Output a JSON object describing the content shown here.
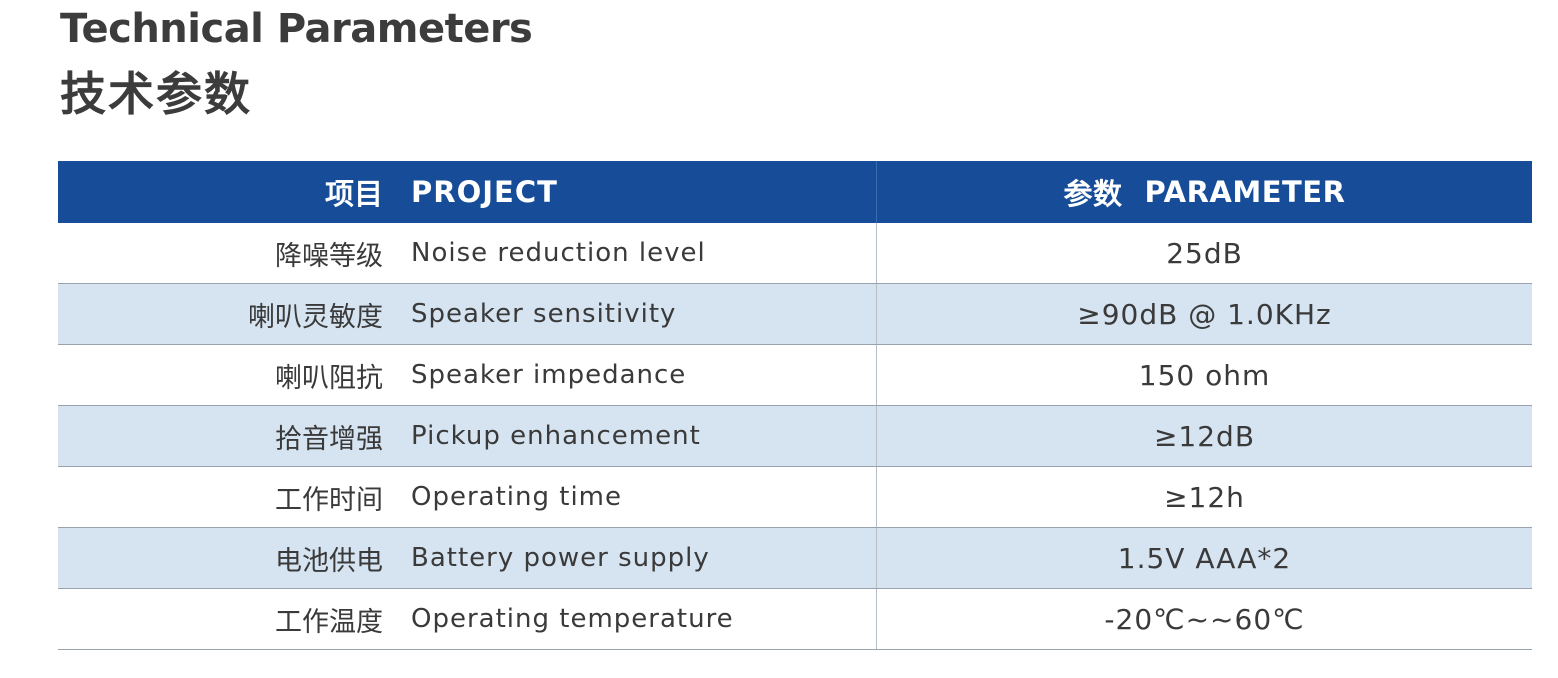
{
  "title_en": "Technical Parameters",
  "title_cn": "技术参数",
  "header": {
    "project_cn": "项目",
    "project_en": "PROJECT",
    "parameter_cn": "参数",
    "parameter_en": "PARAMETER"
  },
  "rows": [
    {
      "cn": "降噪等级",
      "en": "Noise reduction level",
      "value": "25dB"
    },
    {
      "cn": "喇叭灵敏度",
      "en": "Speaker sensitivity",
      "value": "≥90dB @ 1.0KHz"
    },
    {
      "cn": "喇叭阻抗",
      "en": "Speaker impedance",
      "value": "150 ohm"
    },
    {
      "cn": "拾音增强",
      "en": "Pickup enhancement",
      "value": "≥12dB"
    },
    {
      "cn": "工作时间",
      "en": "Operating time",
      "value": "≥12h"
    },
    {
      "cn": "电池供电",
      "en": "Battery power supply",
      "value": "1.5V AAA*2"
    },
    {
      "cn": "工作温度",
      "en": "Operating temperature",
      "value": "-20℃~~60℃"
    }
  ],
  "colors": {
    "header_bg": "#164c98",
    "alt_row_bg": "#d6e4f1",
    "title_text": "#3c3c3c"
  }
}
